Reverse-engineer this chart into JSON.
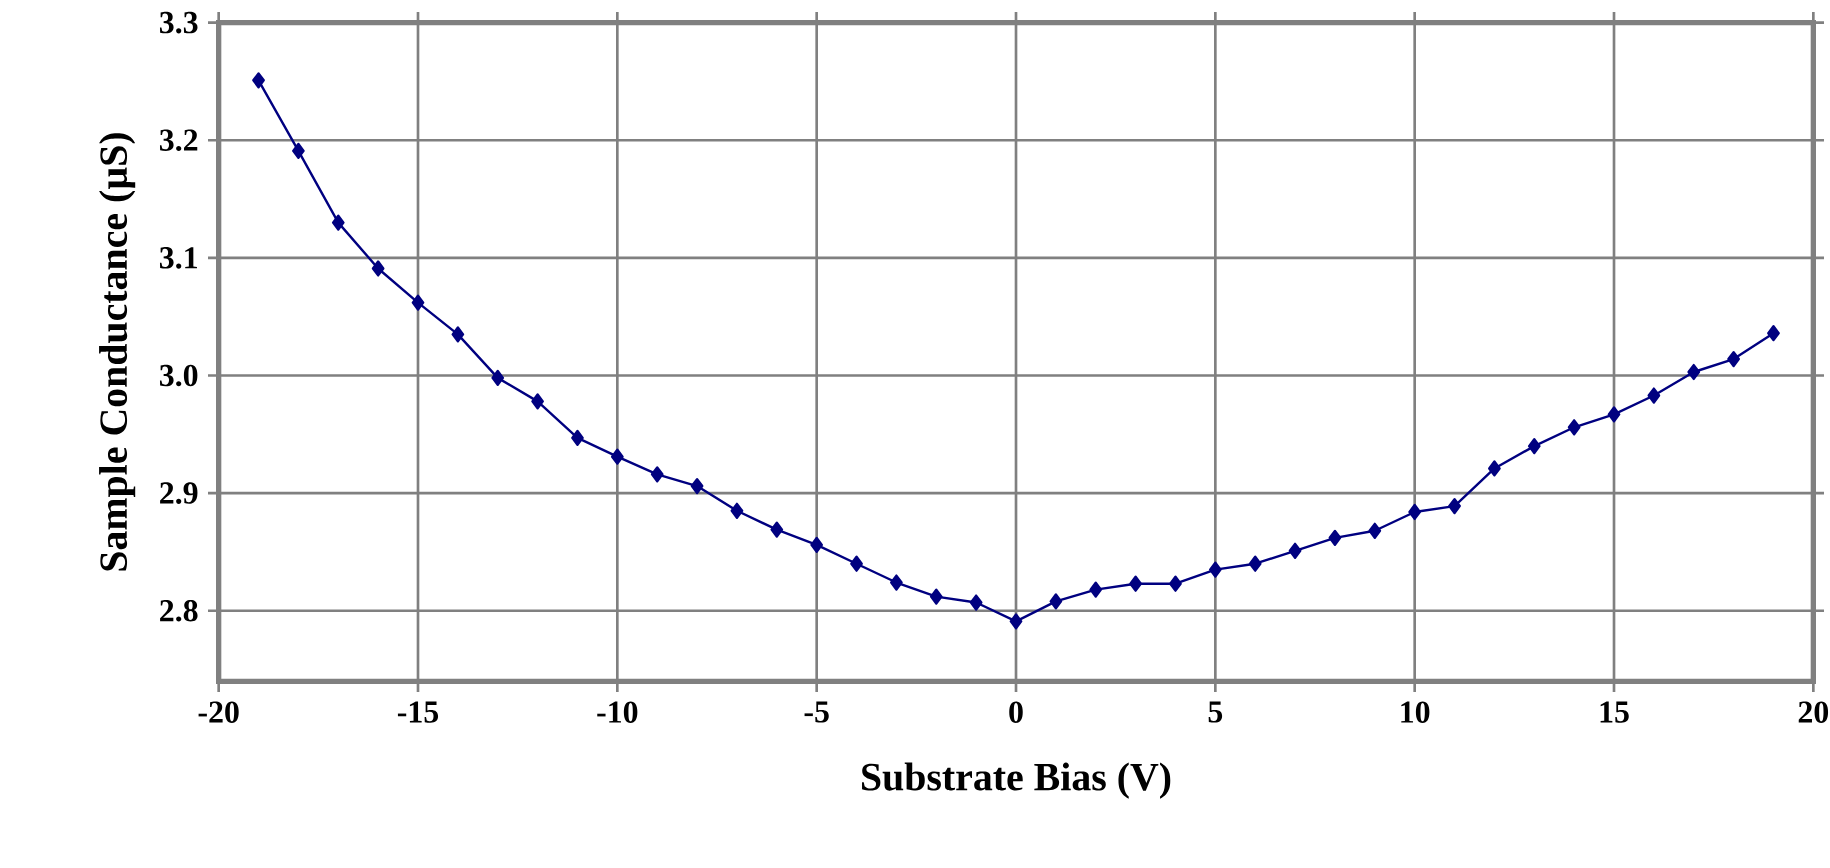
{
  "chart_data": {
    "type": "line",
    "xlabel": "Substrate Bias (V)",
    "ylabel": "Sample Conductance (µS)",
    "x": [
      -19,
      -18,
      -17,
      -16,
      -15,
      -14,
      -13,
      -12,
      -11,
      -10,
      -9,
      -8,
      -7,
      -6,
      -5,
      -4,
      -3,
      -2,
      -1,
      0,
      1,
      2,
      3,
      4,
      5,
      6,
      7,
      8,
      9,
      10,
      11,
      12,
      13,
      14,
      15,
      16,
      17,
      18,
      19
    ],
    "series": [
      {
        "color": "#000080",
        "values": [
          3.251,
          3.191,
          3.13,
          3.091,
          3.062,
          3.035,
          2.998,
          2.978,
          2.947,
          2.931,
          2.916,
          2.906,
          2.885,
          2.869,
          2.856,
          2.84,
          2.824,
          2.812,
          2.807,
          2.791,
          2.808,
          2.818,
          2.823,
          2.823,
          2.835,
          2.84,
          2.851,
          2.862,
          2.868,
          2.884,
          2.889,
          2.921,
          2.94,
          2.956,
          2.967,
          2.983,
          3.003,
          3.014,
          3.036
        ]
      }
    ],
    "xlim": [
      -20,
      20
    ],
    "ylim": [
      2.74,
      3.3
    ],
    "xticks": [
      -20,
      -15,
      -10,
      -5,
      0,
      5,
      10,
      15,
      20
    ],
    "yticks": [
      {
        "value": 2.8,
        "label": "2.8"
      },
      {
        "value": 2.9,
        "label": "2.9"
      },
      {
        "value": 3.0,
        "label": "3.0"
      },
      {
        "value": 3.1,
        "label": "3.1"
      },
      {
        "value": 3.2,
        "label": "3.2"
      },
      {
        "value": 3.3,
        "label": "3.3"
      }
    ],
    "grid": true,
    "marker": "diamond",
    "line_style": "solid"
  }
}
